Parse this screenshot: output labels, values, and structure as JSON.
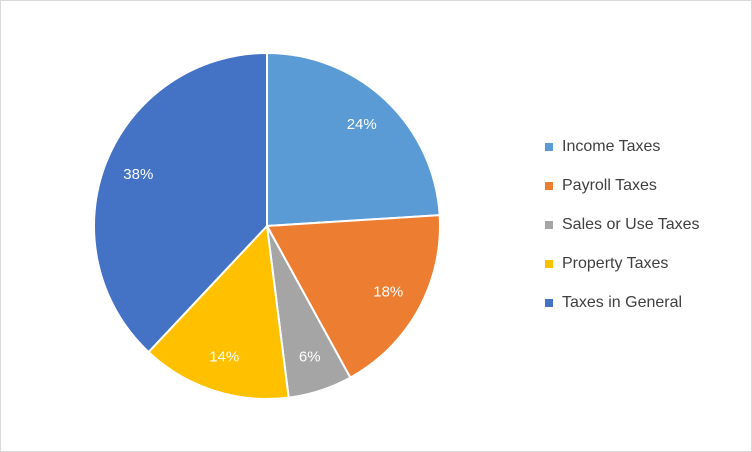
{
  "chart_data": {
    "type": "pie",
    "categories": [
      "Income Taxes",
      "Payroll Taxes",
      "Sales or Use Taxes",
      "Property Taxes",
      "Taxes in General"
    ],
    "values": [
      24,
      18,
      6,
      14,
      38
    ],
    "value_labels": [
      "24%",
      "18%",
      "6%",
      "14%",
      "38%"
    ],
    "colors": [
      "#5b9bd5",
      "#ed7d31",
      "#a5a5a5",
      "#ffc000",
      "#4472c4"
    ],
    "legend": "right"
  }
}
